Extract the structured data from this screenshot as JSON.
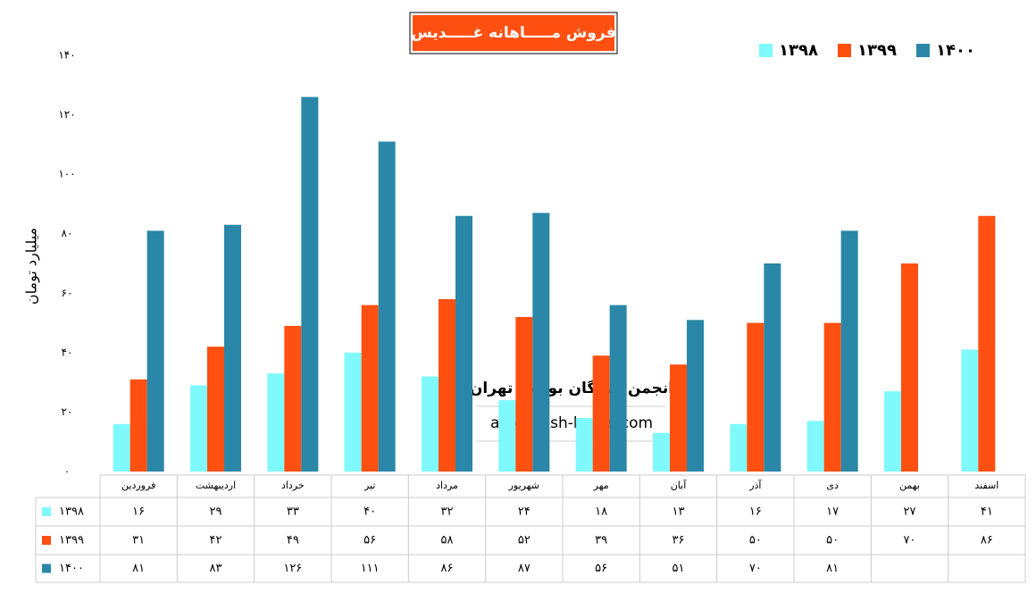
{
  "chart_data": {
    "type": "bar",
    "title": "فروش مـــــاهانه غـــــدیس",
    "ylabel": "میلیارد تومان",
    "annotations": [
      "انجمن خبرگان بورس تهران",
      "amoozesh-boors.com"
    ],
    "categories": [
      "فروردین",
      "اردیبهشت",
      "خرداد",
      "تیر",
      "مرداد",
      "شهریور",
      "مهر",
      "آبان",
      "آذر",
      "دی",
      "بهمن",
      "اسفند"
    ],
    "series": [
      {
        "name": "۱۳۹۸",
        "color": "#7ff9fb",
        "values": [
          16,
          29,
          33,
          40,
          32,
          24,
          18,
          13,
          16,
          17,
          27,
          41
        ],
        "value_labels": [
          "۱۶",
          "۲۹",
          "۳۳",
          "۴۰",
          "۳۲",
          "۲۴",
          "۱۸",
          "۱۳",
          "۱۶",
          "۱۷",
          "۲۷",
          "۴۱"
        ]
      },
      {
        "name": "۱۳۹۹",
        "color": "#ff5011",
        "values": [
          31,
          42,
          49,
          56,
          58,
          52,
          39,
          36,
          50,
          50,
          70,
          86
        ],
        "value_labels": [
          "۳۱",
          "۴۲",
          "۴۹",
          "۵۶",
          "۵۸",
          "۵۲",
          "۳۹",
          "۳۶",
          "۵۰",
          "۵۰",
          "۷۰",
          "۸۶"
        ]
      },
      {
        "name": "۱۴۰۰",
        "color": "#2a87a7",
        "values": [
          81,
          83,
          126,
          111,
          86,
          87,
          56,
          51,
          70,
          81,
          null,
          null
        ],
        "value_labels": [
          "۸۱",
          "۸۳",
          "۱۲۶",
          "۱۱۱",
          "۸۶",
          "۸۷",
          "۵۶",
          "۵۱",
          "۷۰",
          "۸۱",
          null,
          null
        ]
      }
    ],
    "ylim": [
      0,
      140
    ],
    "yticks": [
      {
        "value": 0,
        "label": "۰"
      },
      {
        "value": 20,
        "label": "۲۰"
      },
      {
        "value": 40,
        "label": "۴۰"
      },
      {
        "value": 60,
        "label": "۶۰"
      },
      {
        "value": 80,
        "label": "۸۰"
      },
      {
        "value": 100,
        "label": "۱۰۰"
      },
      {
        "value": 120,
        "label": "۱۲۰"
      },
      {
        "value": 140,
        "label": "۱۴۰"
      }
    ],
    "grid": false,
    "legend": "top-right"
  }
}
